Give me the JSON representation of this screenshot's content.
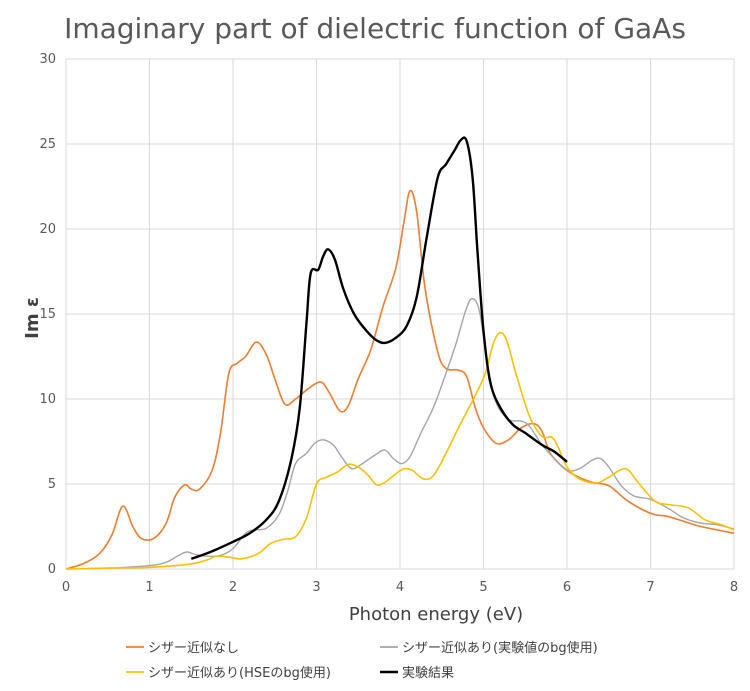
{
  "chart_data": {
    "type": "line",
    "title": "Imaginary part of dielectric function of GaAs",
    "xlabel": "Photon energy (eV)",
    "ylabel": "Im ε",
    "xlim": [
      0,
      8
    ],
    "ylim": [
      0,
      30
    ],
    "xticks": [
      "0",
      "1",
      "2",
      "3",
      "4",
      "5",
      "6",
      "7",
      "8"
    ],
    "yticks": [
      "0",
      "5",
      "10",
      "15",
      "20",
      "25",
      "30"
    ],
    "grid": true,
    "legend_position": "bottom",
    "series": [
      {
        "name": "シザー近似なし",
        "color": "#ED7D31",
        "points": [
          [
            0,
            0
          ],
          [
            0.2,
            0.3
          ],
          [
            0.4,
            0.9
          ],
          [
            0.55,
            2.0
          ],
          [
            0.68,
            3.7
          ],
          [
            0.8,
            2.5
          ],
          [
            0.9,
            1.8
          ],
          [
            1.05,
            1.8
          ],
          [
            1.2,
            2.7
          ],
          [
            1.3,
            4.2
          ],
          [
            1.42,
            4.95
          ],
          [
            1.5,
            4.7
          ],
          [
            1.6,
            4.7
          ],
          [
            1.75,
            5.8
          ],
          [
            1.85,
            8.0
          ],
          [
            1.95,
            11.5
          ],
          [
            2.05,
            12.1
          ],
          [
            2.15,
            12.5
          ],
          [
            2.28,
            13.35
          ],
          [
            2.4,
            12.6
          ],
          [
            2.5,
            11.2
          ],
          [
            2.62,
            9.7
          ],
          [
            2.75,
            10.0
          ],
          [
            2.9,
            10.6
          ],
          [
            3.05,
            11.0
          ],
          [
            3.15,
            10.4
          ],
          [
            3.28,
            9.3
          ],
          [
            3.38,
            9.6
          ],
          [
            3.5,
            11.2
          ],
          [
            3.65,
            12.9
          ],
          [
            3.8,
            15.5
          ],
          [
            3.95,
            17.7
          ],
          [
            4.05,
            20.5
          ],
          [
            4.12,
            22.25
          ],
          [
            4.2,
            21.0
          ],
          [
            4.3,
            16.5
          ],
          [
            4.45,
            12.8
          ],
          [
            4.55,
            11.8
          ],
          [
            4.7,
            11.7
          ],
          [
            4.8,
            11.3
          ],
          [
            4.9,
            9.5
          ],
          [
            5.0,
            8.3
          ],
          [
            5.15,
            7.4
          ],
          [
            5.3,
            7.6
          ],
          [
            5.45,
            8.3
          ],
          [
            5.6,
            8.55
          ],
          [
            5.7,
            8.1
          ],
          [
            5.8,
            6.8
          ],
          [
            5.95,
            6.0
          ],
          [
            6.1,
            5.5
          ],
          [
            6.3,
            5.1
          ],
          [
            6.5,
            4.9
          ],
          [
            6.7,
            4.1
          ],
          [
            6.9,
            3.5
          ],
          [
            7.05,
            3.2
          ],
          [
            7.2,
            3.1
          ],
          [
            7.4,
            2.8
          ],
          [
            7.6,
            2.5
          ],
          [
            7.8,
            2.3
          ],
          [
            8.0,
            2.1
          ]
        ]
      },
      {
        "name": "シザー近似あり(実験値のbg使用)",
        "color": "#A5A5A5",
        "points": [
          [
            0,
            0
          ],
          [
            0.5,
            0.05
          ],
          [
            1.0,
            0.2
          ],
          [
            1.2,
            0.4
          ],
          [
            1.35,
            0.8
          ],
          [
            1.45,
            1.0
          ],
          [
            1.55,
            0.85
          ],
          [
            1.7,
            0.75
          ],
          [
            1.85,
            0.8
          ],
          [
            2.0,
            1.2
          ],
          [
            2.15,
            2.1
          ],
          [
            2.25,
            2.3
          ],
          [
            2.4,
            2.4
          ],
          [
            2.55,
            3.2
          ],
          [
            2.65,
            4.5
          ],
          [
            2.75,
            6.2
          ],
          [
            2.88,
            6.8
          ],
          [
            2.98,
            7.4
          ],
          [
            3.08,
            7.6
          ],
          [
            3.2,
            7.3
          ],
          [
            3.3,
            6.6
          ],
          [
            3.42,
            5.9
          ],
          [
            3.55,
            6.2
          ],
          [
            3.7,
            6.7
          ],
          [
            3.82,
            7.0
          ],
          [
            3.92,
            6.5
          ],
          [
            4.02,
            6.2
          ],
          [
            4.12,
            6.6
          ],
          [
            4.25,
            8.0
          ],
          [
            4.4,
            9.5
          ],
          [
            4.55,
            11.5
          ],
          [
            4.68,
            13.4
          ],
          [
            4.78,
            15.1
          ],
          [
            4.86,
            15.9
          ],
          [
            4.95,
            15.2
          ],
          [
            5.05,
            12.0
          ],
          [
            5.15,
            9.8
          ],
          [
            5.3,
            8.8
          ],
          [
            5.45,
            8.7
          ],
          [
            5.55,
            8.4
          ],
          [
            5.7,
            7.3
          ],
          [
            5.85,
            6.5
          ],
          [
            6.0,
            5.8
          ],
          [
            6.15,
            5.9
          ],
          [
            6.3,
            6.4
          ],
          [
            6.4,
            6.5
          ],
          [
            6.5,
            6.0
          ],
          [
            6.65,
            4.9
          ],
          [
            6.8,
            4.3
          ],
          [
            7.0,
            4.1
          ],
          [
            7.2,
            3.6
          ],
          [
            7.4,
            3.0
          ],
          [
            7.6,
            2.7
          ],
          [
            7.8,
            2.6
          ],
          [
            8.0,
            2.35
          ]
        ]
      },
      {
        "name": "シザー近似あり(HSEのbg使用)",
        "color": "#FFC000",
        "points": [
          [
            0,
            0
          ],
          [
            0.5,
            0.05
          ],
          [
            1.0,
            0.1
          ],
          [
            1.5,
            0.3
          ],
          [
            1.7,
            0.55
          ],
          [
            1.8,
            0.75
          ],
          [
            1.95,
            0.7
          ],
          [
            2.1,
            0.6
          ],
          [
            2.3,
            0.9
          ],
          [
            2.45,
            1.5
          ],
          [
            2.6,
            1.75
          ],
          [
            2.75,
            1.9
          ],
          [
            2.88,
            3.0
          ],
          [
            3.0,
            5.0
          ],
          [
            3.12,
            5.4
          ],
          [
            3.25,
            5.7
          ],
          [
            3.38,
            6.15
          ],
          [
            3.5,
            6.0
          ],
          [
            3.62,
            5.5
          ],
          [
            3.72,
            4.95
          ],
          [
            3.82,
            5.1
          ],
          [
            3.95,
            5.6
          ],
          [
            4.05,
            5.9
          ],
          [
            4.15,
            5.8
          ],
          [
            4.28,
            5.3
          ],
          [
            4.4,
            5.5
          ],
          [
            4.55,
            6.8
          ],
          [
            4.72,
            8.5
          ],
          [
            4.88,
            10.0
          ],
          [
            5.02,
            11.5
          ],
          [
            5.12,
            13.3
          ],
          [
            5.2,
            13.9
          ],
          [
            5.28,
            13.4
          ],
          [
            5.4,
            11.3
          ],
          [
            5.55,
            9.0
          ],
          [
            5.7,
            7.8
          ],
          [
            5.82,
            7.75
          ],
          [
            5.9,
            7.1
          ],
          [
            6.0,
            6.0
          ],
          [
            6.15,
            5.3
          ],
          [
            6.35,
            5.05
          ],
          [
            6.5,
            5.4
          ],
          [
            6.7,
            5.9
          ],
          [
            6.85,
            5.1
          ],
          [
            7.05,
            4.0
          ],
          [
            7.2,
            3.8
          ],
          [
            7.45,
            3.6
          ],
          [
            7.65,
            2.9
          ],
          [
            7.85,
            2.6
          ],
          [
            8.0,
            2.3
          ]
        ]
      },
      {
        "name": "実験結果",
        "color": "#000000",
        "points": [
          [
            1.5,
            0.6
          ],
          [
            1.65,
            0.85
          ],
          [
            1.8,
            1.15
          ],
          [
            2.0,
            1.6
          ],
          [
            2.2,
            2.1
          ],
          [
            2.4,
            2.9
          ],
          [
            2.55,
            4.0
          ],
          [
            2.7,
            6.5
          ],
          [
            2.8,
            9.5
          ],
          [
            2.88,
            14.5
          ],
          [
            2.93,
            17.4
          ],
          [
            3.02,
            17.6
          ],
          [
            3.08,
            18.4
          ],
          [
            3.14,
            18.8
          ],
          [
            3.22,
            18.2
          ],
          [
            3.32,
            16.5
          ],
          [
            3.45,
            15.0
          ],
          [
            3.6,
            14.0
          ],
          [
            3.72,
            13.45
          ],
          [
            3.82,
            13.3
          ],
          [
            3.95,
            13.6
          ],
          [
            4.08,
            14.3
          ],
          [
            4.2,
            16.0
          ],
          [
            4.32,
            19.5
          ],
          [
            4.45,
            23.0
          ],
          [
            4.55,
            23.8
          ],
          [
            4.65,
            24.6
          ],
          [
            4.73,
            25.25
          ],
          [
            4.8,
            25.15
          ],
          [
            4.87,
            23.0
          ],
          [
            4.93,
            18.5
          ],
          [
            5.0,
            14.0
          ],
          [
            5.08,
            11.0
          ],
          [
            5.2,
            9.5
          ],
          [
            5.35,
            8.5
          ],
          [
            5.5,
            8.0
          ],
          [
            5.7,
            7.3
          ],
          [
            5.85,
            6.9
          ],
          [
            6.0,
            6.3
          ]
        ]
      }
    ]
  }
}
